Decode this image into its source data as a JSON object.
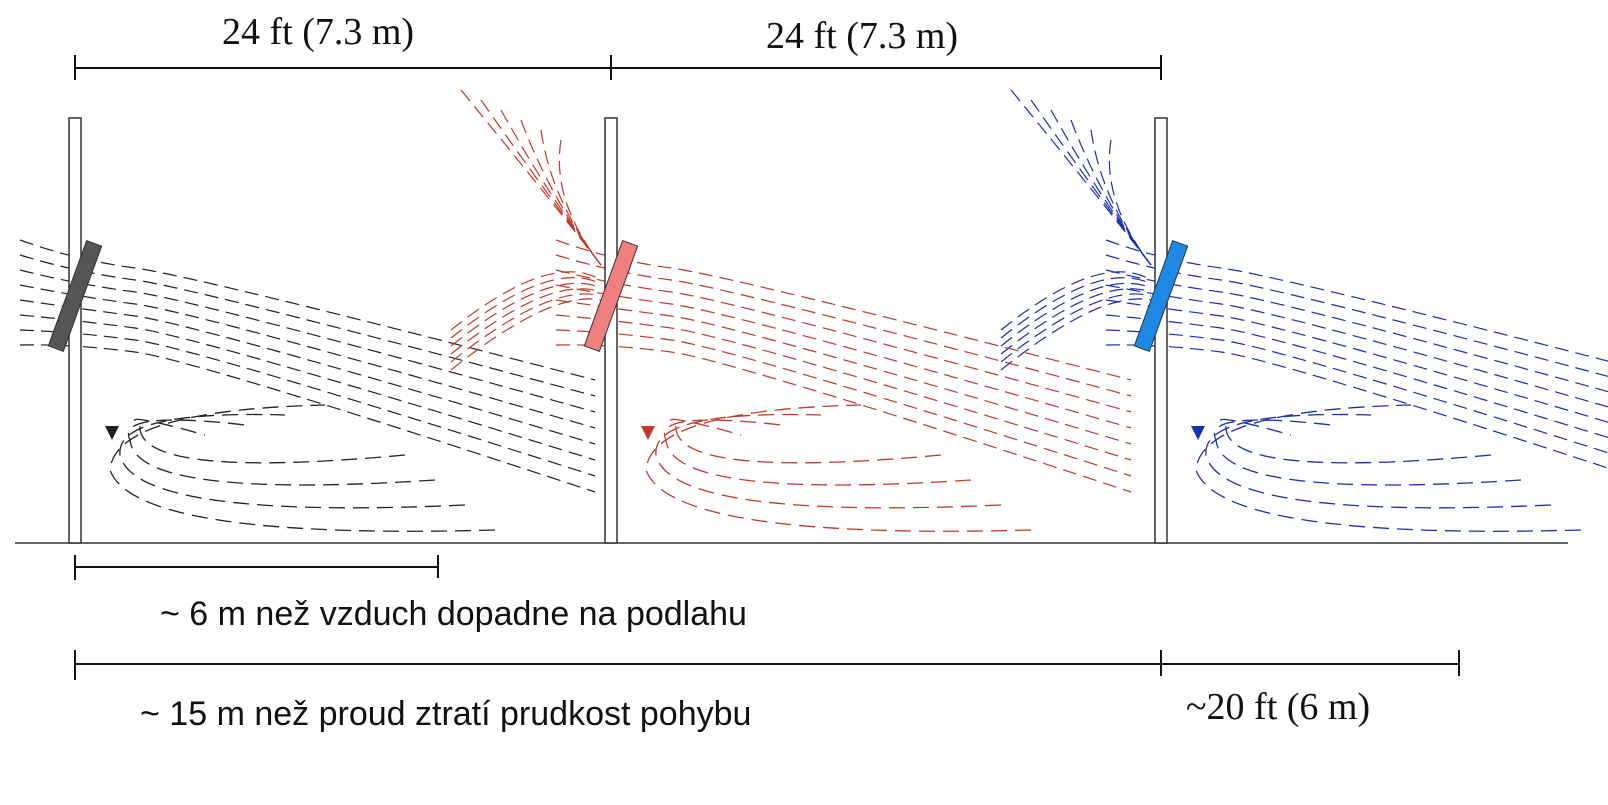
{
  "dimensions": {
    "top": [
      "24 ft (7.3 m)",
      "24 ft (7.3 m)"
    ],
    "fall": "~ 6 m než vzduch dopadne na podlahu",
    "throw": "~ 15 m než proud ztratí prudkost pohybu",
    "extra": "~20 ft (6 m)"
  }
}
